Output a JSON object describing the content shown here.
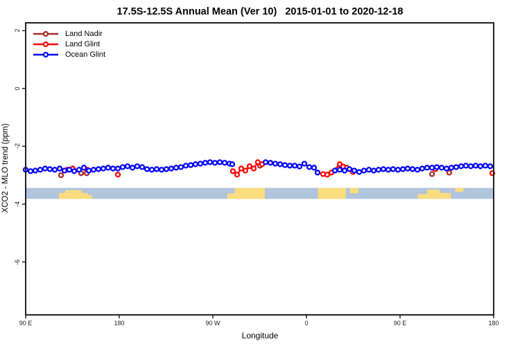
{
  "title": "17.5S-12.5S Annual Mean (Ver 10)   2015-01-01 to 2020-12-18",
  "legend": {
    "items": [
      "Land Nadir",
      "Land Glint",
      "Ocean Glint"
    ]
  },
  "chart_data": {
    "type": "scatter",
    "title": "17.5S-12.5S Annual Mean (Ver 10)   2015-01-01 to 2020-12-18",
    "xlabel": "Longitude",
    "ylabel": "XCO2 - MLO trend (ppm)",
    "x_range": [
      90,
      540
    ],
    "y_range": {
      "top": 2.27,
      "bottom": -7.83
    },
    "x_ticks": [
      {
        "v": 90,
        "label": "90 E"
      },
      {
        "v": 180,
        "label": "180"
      },
      {
        "v": 270,
        "label": "90 W"
      },
      {
        "v": 360,
        "label": "0"
      },
      {
        "v": 450,
        "label": "90 E"
      },
      {
        "v": 540,
        "label": "180"
      }
    ],
    "y_ticks": [
      {
        "v": 2,
        "label": "2"
      },
      {
        "v": 0,
        "label": "0"
      },
      {
        "v": -2,
        "label": "-2"
      },
      {
        "v": -4,
        "label": "-4"
      },
      {
        "v": -6,
        "label": "-6"
      }
    ],
    "grid": false,
    "legend_position": "top-left",
    "band": {
      "description": "land-ocean strip",
      "ocean_color": "#b0c4de",
      "land_color": "#fbdc7e",
      "ppm_top": -3.44,
      "ppm_bottom": -3.82,
      "land_patches": [
        {
          "lon0": 122,
          "lon1": 150,
          "f0": 0.45,
          "f1": 1
        },
        {
          "lon0": 128,
          "lon1": 144,
          "f0": 0.2,
          "f1": 0.45
        },
        {
          "lon0": 150,
          "lon1": 154,
          "f0": 0.65,
          "f1": 1
        },
        {
          "lon0": 284,
          "lon1": 291,
          "f0": 0.5,
          "f1": 1
        },
        {
          "lon0": 291,
          "lon1": 320,
          "f0": 0,
          "f1": 1
        },
        {
          "lon0": 371,
          "lon1": 398,
          "f0": 0,
          "f1": 1
        },
        {
          "lon0": 402,
          "lon1": 410,
          "f0": 0,
          "f1": 0.5
        },
        {
          "lon0": 467,
          "lon1": 476,
          "f0": 0.55,
          "f1": 1
        },
        {
          "lon0": 476,
          "lon1": 488,
          "f0": 0.15,
          "f1": 1
        },
        {
          "lon0": 488,
          "lon1": 499,
          "f0": 0.45,
          "f1": 1
        },
        {
          "lon0": 503,
          "lon1": 511,
          "f0": 0,
          "f1": 0.35
        }
      ]
    },
    "gap_threshold_deg": 8.5,
    "series": [
      {
        "name": "Land Nadir",
        "color": "#a52a2a",
        "points": [
          [
            124,
            -3.0
          ],
          [
            143.3,
            -2.93
          ],
          [
            148.7,
            -2.93
          ],
          [
            315.3,
            -2.67
          ],
          [
            398.7,
            -2.74
          ],
          [
            480.7,
            -2.96
          ],
          [
            497.3,
            -2.91
          ]
        ]
      },
      {
        "name": "Land Glint",
        "color": "#ff0000",
        "points": [
          [
            130,
            -2.81
          ],
          [
            135.3,
            -2.77
          ],
          [
            149.3,
            -2.81
          ],
          [
            178.7,
            -2.98
          ],
          [
            289.3,
            -2.86
          ],
          [
            293.3,
            -2.98
          ],
          [
            297.3,
            -2.77
          ],
          [
            301.3,
            -2.84
          ],
          [
            305.3,
            -2.69
          ],
          [
            309.3,
            -2.77
          ],
          [
            313.3,
            -2.55
          ],
          [
            317.3,
            -2.62
          ],
          [
            376,
            -2.96
          ],
          [
            380,
            -2.98
          ],
          [
            384,
            -2.91
          ],
          [
            392,
            -2.62
          ],
          [
            395.3,
            -2.7
          ],
          [
            404.7,
            -2.89
          ],
          [
            484,
            -2.79
          ],
          [
            538.7,
            -2.93
          ]
        ]
      },
      {
        "name": "Ocean Glint",
        "color": "#0000ff",
        "points": [
          [
            90,
            -2.81
          ],
          [
            94.7,
            -2.86
          ],
          [
            99.3,
            -2.84
          ],
          [
            104,
            -2.81
          ],
          [
            108.7,
            -2.77
          ],
          [
            113.3,
            -2.79
          ],
          [
            118,
            -2.81
          ],
          [
            122.7,
            -2.77
          ],
          [
            127.3,
            -2.84
          ],
          [
            132,
            -2.81
          ],
          [
            136.7,
            -2.86
          ],
          [
            141.3,
            -2.81
          ],
          [
            146,
            -2.74
          ],
          [
            150.7,
            -2.84
          ],
          [
            155.3,
            -2.81
          ],
          [
            160,
            -2.79
          ],
          [
            164.7,
            -2.77
          ],
          [
            169.3,
            -2.74
          ],
          [
            174,
            -2.77
          ],
          [
            178.7,
            -2.77
          ],
          [
            183.3,
            -2.72
          ],
          [
            188,
            -2.69
          ],
          [
            192.7,
            -2.74
          ],
          [
            197.3,
            -2.69
          ],
          [
            202,
            -2.72
          ],
          [
            206.7,
            -2.79
          ],
          [
            211.3,
            -2.81
          ],
          [
            216,
            -2.79
          ],
          [
            220.7,
            -2.81
          ],
          [
            225.3,
            -2.79
          ],
          [
            230,
            -2.77
          ],
          [
            234.7,
            -2.74
          ],
          [
            239.3,
            -2.72
          ],
          [
            244,
            -2.67
          ],
          [
            248.7,
            -2.65
          ],
          [
            253.3,
            -2.62
          ],
          [
            258,
            -2.6
          ],
          [
            262.7,
            -2.57
          ],
          [
            267.3,
            -2.55
          ],
          [
            272,
            -2.57
          ],
          [
            276.7,
            -2.55
          ],
          [
            281.3,
            -2.57
          ],
          [
            286,
            -2.6
          ],
          [
            288.7,
            -2.62
          ],
          [
            320.7,
            -2.55
          ],
          [
            325.3,
            -2.57
          ],
          [
            330,
            -2.6
          ],
          [
            334.7,
            -2.62
          ],
          [
            339.3,
            -2.65
          ],
          [
            344,
            -2.67
          ],
          [
            348.7,
            -2.67
          ],
          [
            353.3,
            -2.7
          ],
          [
            358,
            -2.6
          ],
          [
            362.7,
            -2.72
          ],
          [
            367.3,
            -2.74
          ],
          [
            370.7,
            -2.91
          ],
          [
            387.3,
            -2.84
          ],
          [
            392,
            -2.81
          ],
          [
            396.7,
            -2.84
          ],
          [
            401.3,
            -2.79
          ],
          [
            406,
            -2.84
          ],
          [
            410.7,
            -2.89
          ],
          [
            415.3,
            -2.84
          ],
          [
            420,
            -2.81
          ],
          [
            424.7,
            -2.84
          ],
          [
            429.3,
            -2.81
          ],
          [
            434,
            -2.79
          ],
          [
            438.7,
            -2.81
          ],
          [
            443.3,
            -2.79
          ],
          [
            448,
            -2.81
          ],
          [
            452.7,
            -2.79
          ],
          [
            457.3,
            -2.77
          ],
          [
            462,
            -2.79
          ],
          [
            466.7,
            -2.81
          ],
          [
            471.3,
            -2.77
          ],
          [
            476,
            -2.74
          ],
          [
            480.7,
            -2.74
          ],
          [
            485.3,
            -2.72
          ],
          [
            490,
            -2.74
          ],
          [
            494.7,
            -2.77
          ],
          [
            499.3,
            -2.74
          ],
          [
            504,
            -2.72
          ],
          [
            508.7,
            -2.69
          ],
          [
            513.3,
            -2.67
          ],
          [
            518,
            -2.69
          ],
          [
            522.7,
            -2.67
          ],
          [
            527.3,
            -2.69
          ],
          [
            532,
            -2.67
          ],
          [
            536.7,
            -2.69
          ]
        ]
      }
    ]
  },
  "style": {
    "axis_color": "#1f1f1f",
    "marker_fill": "#ffffff"
  }
}
